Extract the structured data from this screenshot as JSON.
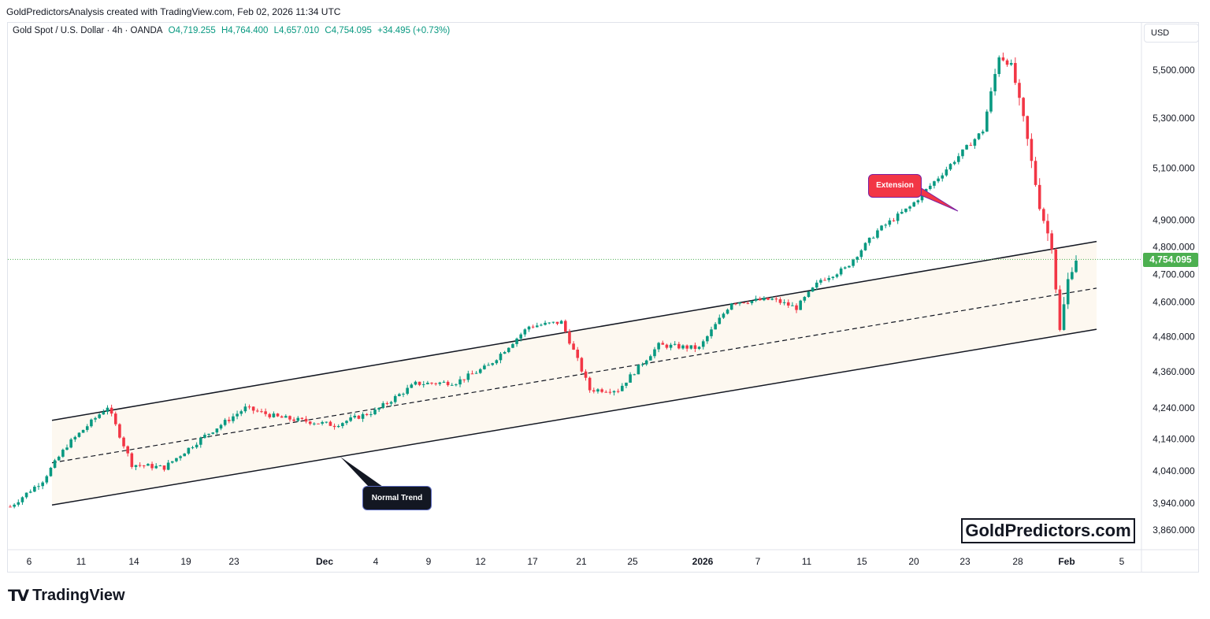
{
  "header": {
    "credit": "GoldPredictorsAnalysis created with TradingView.com, Feb 02, 2026 11:34 UTC"
  },
  "legend": {
    "symbol": "Gold Spot / U.S. Dollar · 4h · OANDA",
    "open": "O4,719.255",
    "high": "H4,764.400",
    "low": "L4,657.010",
    "close": "C4,754.095",
    "change": "+34.495 (+0.73%)"
  },
  "currency_label": "USD",
  "price_tag": "4,754.095",
  "watermark": "GoldPredictors.com",
  "footer": {
    "logo_text": "TradingView"
  },
  "annotations": {
    "extension": "Extension",
    "normal_trend": "Normal Trend"
  },
  "colors": {
    "up": "#089981",
    "down": "#f23645",
    "channel_fill": "#fdf8f0",
    "line": "#131722",
    "price_tag_bg": "#4caf50"
  },
  "chart_data": {
    "type": "candlestick",
    "timeframe": "4h",
    "y_axis": {
      "ticks": [
        3860,
        3940,
        4040,
        4140,
        4240,
        4360,
        4480,
        4600,
        4700,
        4800,
        4900,
        5100,
        5300,
        5500
      ],
      "tick_labels": [
        "3,860.000",
        "3,940.000",
        "4,040.000",
        "4,140.000",
        "4,240.000",
        "4,360.000",
        "4,480.000",
        "4,600.000",
        "4,700.000",
        "4,800.000",
        "4,900.000",
        "5,100.000",
        "5,300.000",
        "5,500.000"
      ],
      "scale": "log"
    },
    "x_axis": {
      "tick_labels": [
        "6",
        "11",
        "14",
        "19",
        "23",
        "Dec",
        "4",
        "9",
        "12",
        "17",
        "21",
        "25",
        "2026",
        "7",
        "11",
        "15",
        "20",
        "23",
        "28",
        "Feb",
        "5"
      ]
    },
    "last_price": 4754.095,
    "anchors": [
      {
        "t": 0,
        "p": 3930
      },
      {
        "t": 8,
        "p": 4010
      },
      {
        "t": 14,
        "p": 4120
      },
      {
        "t": 24,
        "p": 4245
      },
      {
        "t": 30,
        "p": 4060
      },
      {
        "t": 38,
        "p": 4050
      },
      {
        "t": 48,
        "p": 4150
      },
      {
        "t": 58,
        "p": 4240
      },
      {
        "t": 66,
        "p": 4210
      },
      {
        "t": 80,
        "p": 4185
      },
      {
        "t": 90,
        "p": 4230
      },
      {
        "t": 100,
        "p": 4320
      },
      {
        "t": 110,
        "p": 4325
      },
      {
        "t": 118,
        "p": 4380
      },
      {
        "t": 128,
        "p": 4515
      },
      {
        "t": 136,
        "p": 4530
      },
      {
        "t": 143,
        "p": 4300
      },
      {
        "t": 150,
        "p": 4300
      },
      {
        "t": 160,
        "p": 4450
      },
      {
        "t": 170,
        "p": 4440
      },
      {
        "t": 178,
        "p": 4600
      },
      {
        "t": 188,
        "p": 4610
      },
      {
        "t": 194,
        "p": 4580
      },
      {
        "t": 200,
        "p": 4680
      },
      {
        "t": 206,
        "p": 4720
      },
      {
        "t": 214,
        "p": 4860
      },
      {
        "t": 222,
        "p": 4950
      },
      {
        "t": 230,
        "p": 5080
      },
      {
        "t": 240,
        "p": 5250
      },
      {
        "t": 244,
        "p": 5560
      },
      {
        "t": 247,
        "p": 5520
      },
      {
        "t": 250,
        "p": 5300
      },
      {
        "t": 254,
        "p": 4950
      },
      {
        "t": 257,
        "p": 4800
      },
      {
        "t": 259,
        "p": 4500
      },
      {
        "t": 261,
        "p": 4680
      },
      {
        "t": 263,
        "p": 4754
      }
    ],
    "channel": {
      "upper": {
        "start": 4200,
        "end": 4820
      },
      "mid": {
        "start": 4065,
        "end": 4650
      },
      "lower": {
        "start": 3935,
        "end": 4505
      }
    }
  }
}
